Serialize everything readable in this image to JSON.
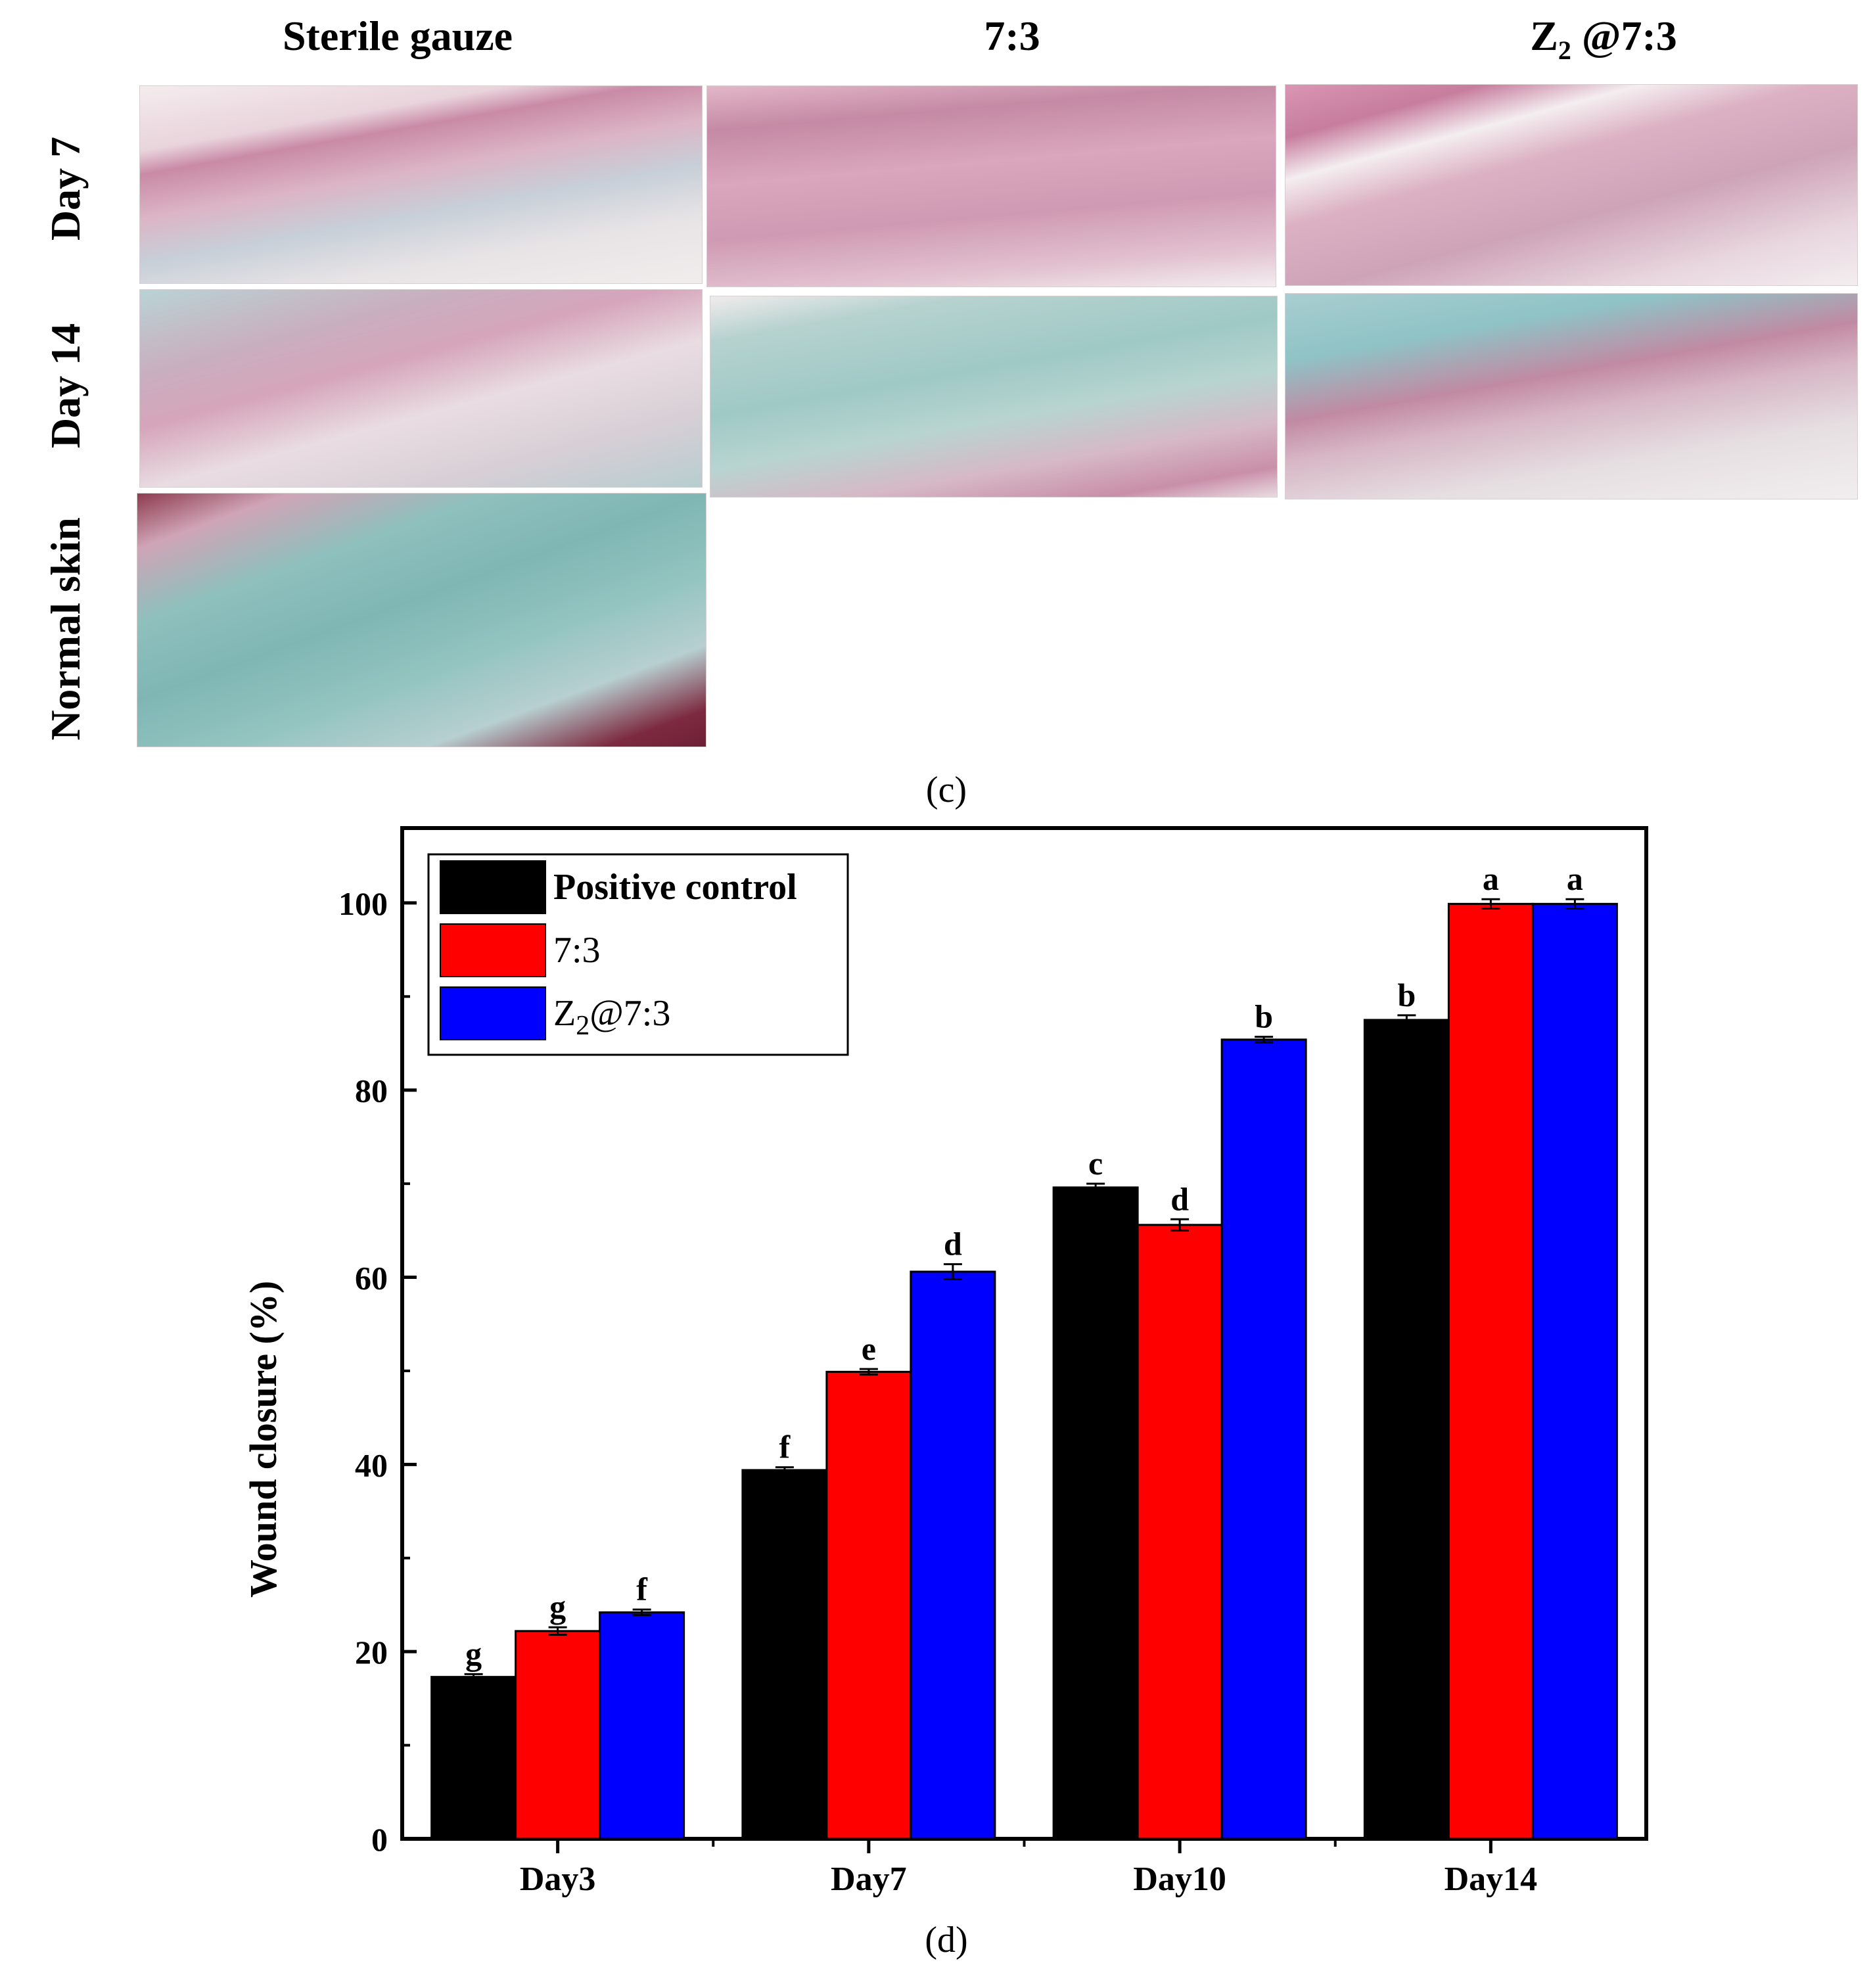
{
  "figure": {
    "columns": [
      "Sterile gauze",
      "7:3",
      "Z",
      "2",
      "@7:3"
    ],
    "rows": [
      "Day 7",
      "Day 14",
      "Normal skin"
    ],
    "panel_c_label": "(c)",
    "panel_d_label": "(d)"
  },
  "chart_data": {
    "type": "bar",
    "categories": [
      "Day3",
      "Day7",
      "Day10",
      "Day14"
    ],
    "series": [
      {
        "name": "Positive control",
        "color": "#000000",
        "values": [
          17.3,
          39.4,
          69.6,
          87.5
        ],
        "errors": [
          0.3,
          0.3,
          0.4,
          0.5
        ],
        "letters": [
          "g",
          "f",
          "c",
          "b"
        ]
      },
      {
        "name": "7:3",
        "color": "#ff0000",
        "values": [
          22.2,
          49.9,
          65.6,
          99.9
        ],
        "errors": [
          0.4,
          0.3,
          0.6,
          0.5
        ],
        "letters": [
          "g",
          "e",
          "d",
          "a"
        ]
      },
      {
        "name": "Z2@7:3",
        "color": "#0000ff",
        "values": [
          24.2,
          60.6,
          85.4,
          99.9
        ],
        "errors": [
          0.3,
          0.8,
          0.3,
          0.5
        ],
        "letters": [
          "f",
          "d",
          "b",
          "a"
        ]
      }
    ],
    "legend_labels": {
      "z": "Z",
      "sub": "2",
      "rest": "@7:3"
    },
    "ylabel": "Wound closure (%)",
    "xlabel": "",
    "ylim": [
      0,
      108
    ],
    "yticks": [
      0,
      20,
      40,
      60,
      80,
      100
    ],
    "legend_position": "top-left"
  }
}
